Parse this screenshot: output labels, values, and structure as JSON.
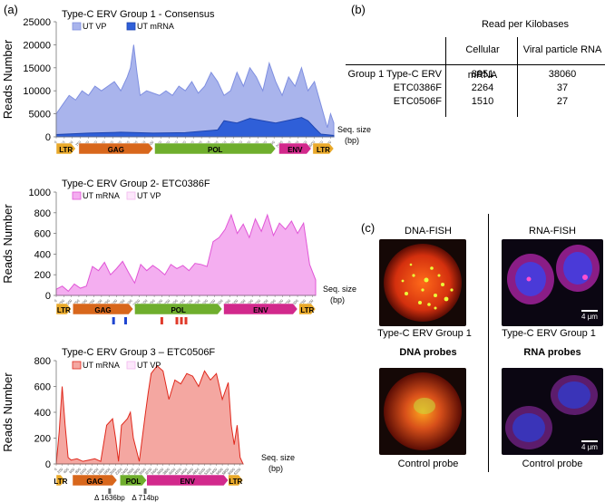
{
  "panels": {
    "a": "(a)",
    "b": "(b)",
    "c": "(c)"
  },
  "chart_data": [
    {
      "type": "area",
      "title": "Type-C ERV Group 1 - Consensus",
      "ylabel": "Reads Number",
      "ylim": [
        0,
        25000
      ],
      "yticks": [
        "0",
        "5000",
        "10000",
        "15000",
        "20000",
        "25000"
      ],
      "ytick_values": [
        0,
        5000,
        10000,
        15000,
        20000,
        25000
      ],
      "xmax": 8600,
      "seq_label": "Seq. size",
      "seq_unit": "(bp)",
      "legend": [
        "UT VP",
        "UT mRNA"
      ],
      "series": [
        {
          "name": "UT VP",
          "color": "#a9b4ec",
          "stroke": "#7f8fe0",
          "x": [
            0,
            200,
            400,
            600,
            800,
            1000,
            1200,
            1400,
            1600,
            1800,
            2000,
            2200,
            2300,
            2400,
            2500,
            2600,
            2800,
            3000,
            3200,
            3400,
            3600,
            3800,
            4000,
            4200,
            4400,
            4600,
            4800,
            5000,
            5200,
            5400,
            5600,
            5800,
            6000,
            6200,
            6400,
            6600,
            6800,
            7000,
            7200,
            7400,
            7600,
            7800,
            8000,
            8200,
            8400,
            8500,
            8600
          ],
          "values": [
            5000,
            7000,
            9000,
            8000,
            10000,
            9000,
            11000,
            10000,
            11000,
            12000,
            10000,
            13000,
            15000,
            20000,
            14000,
            9000,
            10000,
            9500,
            9000,
            10000,
            9000,
            11000,
            10000,
            12000,
            9500,
            11000,
            14000,
            12000,
            9000,
            10000,
            14000,
            11000,
            15000,
            13000,
            10000,
            16000,
            12000,
            9000,
            13000,
            11000,
            15000,
            10000,
            12000,
            7000,
            2000,
            5000,
            3000
          ]
        },
        {
          "name": "UT mRNA",
          "color": "#2f5fd8",
          "stroke": "#1f45b0",
          "x": [
            0,
            1000,
            2000,
            3000,
            4000,
            5000,
            5200,
            5600,
            6000,
            6400,
            6800,
            7200,
            7600,
            7800,
            8000,
            8200,
            8600
          ],
          "values": [
            500,
            800,
            1000,
            800,
            900,
            1500,
            3500,
            3000,
            4000,
            3500,
            3000,
            3600,
            4200,
            3500,
            2000,
            600,
            300
          ]
        }
      ],
      "genes": [
        "LTR",
        "GAG",
        "POL",
        "ENV",
        "LTR"
      ]
    },
    {
      "type": "area",
      "title": "Type-C ERV Group 2- ETC0386F",
      "ylabel": "Reads Number",
      "ylim": [
        0,
        1000
      ],
      "yticks": [
        "0",
        "200",
        "400",
        "600",
        "800",
        "1000"
      ],
      "ytick_values": [
        0,
        200,
        400,
        600,
        800,
        1000
      ],
      "xmax": 8600,
      "seq_label": "Seq. size",
      "seq_unit": "(bp)",
      "legend": [
        "UT mRNA",
        "UT VP"
      ],
      "series": [
        {
          "name": "UT mRNA",
          "color": "#f4aef0",
          "stroke": "#e055d6",
          "x": [
            0,
            200,
            400,
            600,
            800,
            1000,
            1200,
            1400,
            1600,
            1800,
            2000,
            2200,
            2400,
            2600,
            2800,
            3000,
            3200,
            3400,
            3600,
            3800,
            4000,
            4200,
            4400,
            4600,
            4800,
            5000,
            5200,
            5400,
            5600,
            5800,
            6000,
            6200,
            6400,
            6600,
            6800,
            7000,
            7200,
            7400,
            7600,
            7800,
            8000,
            8200,
            8400,
            8600
          ],
          "values": [
            60,
            90,
            40,
            110,
            70,
            90,
            280,
            240,
            320,
            200,
            260,
            330,
            220,
            120,
            300,
            240,
            290,
            250,
            200,
            300,
            260,
            290,
            240,
            310,
            300,
            280,
            520,
            560,
            640,
            780,
            600,
            690,
            560,
            740,
            620,
            780,
            580,
            700,
            640,
            720,
            600,
            700,
            300,
            150
          ]
        }
      ],
      "genes": [
        "LTR",
        "GAG",
        "POL",
        "ENV",
        "LTR"
      ],
      "markers": [
        {
          "color": "#1f45d0",
          "x": 1900
        },
        {
          "color": "#1f45d0",
          "x": 2300
        },
        {
          "color": "#e03a2a",
          "x": 3500
        },
        {
          "color": "#e03a2a",
          "x": 4000
        },
        {
          "color": "#e03a2a",
          "x": 4150
        },
        {
          "color": "#e03a2a",
          "x": 4300
        }
      ]
    },
    {
      "type": "area",
      "title": "Type-C ERV Group 3 – ETC0506F",
      "ylabel": "Reads Number",
      "ylim": [
        0,
        800
      ],
      "yticks": [
        "0",
        "200",
        "400",
        "600",
        "800"
      ],
      "ytick_values": [
        0,
        200,
        400,
        600,
        800
      ],
      "xmax": 6300,
      "seq_label": "Seq. size",
      "seq_unit": "(bp)",
      "legend": [
        "UT mRNA",
        "UT VP"
      ],
      "series": [
        {
          "name": "UT mRNA",
          "color": "#f4a7a1",
          "stroke": "#e0281c",
          "x": [
            0,
            100,
            200,
            300,
            400,
            500,
            700,
            900,
            1100,
            1300,
            1500,
            1700,
            1900,
            2000,
            2100,
            2200,
            2400,
            2500,
            2600,
            2800,
            3000,
            3100,
            3200,
            3400,
            3600,
            3800,
            4000,
            4200,
            4400,
            4600,
            4800,
            5000,
            5200,
            5400,
            5600,
            5800,
            5900,
            6000,
            6100,
            6200,
            6300
          ],
          "values": [
            0,
            250,
            600,
            300,
            50,
            30,
            40,
            20,
            30,
            40,
            20,
            300,
            350,
            200,
            20,
            300,
            350,
            400,
            200,
            20,
            380,
            550,
            700,
            760,
            720,
            500,
            650,
            620,
            700,
            680,
            600,
            720,
            650,
            700,
            500,
            630,
            300,
            150,
            300,
            50,
            0
          ]
        }
      ],
      "genes": [
        "LTR",
        "GAG",
        "POL",
        "ENV",
        "LTR"
      ],
      "deletions": [
        "Δ 1636bp",
        "Δ 714bp"
      ]
    }
  ],
  "table": {
    "title": "Read per Kilobases",
    "headers": [
      "Cellular mRNA",
      "Viral particle RNA"
    ],
    "rows": [
      {
        "name": "Group 1 Type-C ERV",
        "mrna": "8851",
        "vp": "38060"
      },
      {
        "name": "ETC0386F",
        "mrna": "2264",
        "vp": "37"
      },
      {
        "name": "ETC0506F",
        "mrna": "1510",
        "vp": "27"
      }
    ]
  },
  "fish": {
    "dna_title": "DNA-FISH",
    "rna_title": "RNA-FISH",
    "group_caption": "Type-C  ERV Group 1",
    "dna_probes": "DNA probes",
    "rna_probes": "RNA probes",
    "control_caption": "Control probe",
    "scale_label": "4 μm"
  }
}
